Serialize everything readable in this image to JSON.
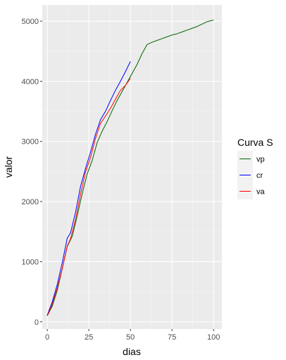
{
  "chart_data": {
    "type": "line",
    "title": "",
    "xlabel": "dias",
    "ylabel": "valor",
    "xlim": [
      -3,
      105
    ],
    "ylim": [
      -120,
      5270
    ],
    "x_ticks": [
      0,
      25,
      50,
      75,
      100
    ],
    "y_ticks": [
      0,
      1000,
      2000,
      3000,
      4000,
      5000
    ],
    "grid": true,
    "legend": {
      "title": "Curva S",
      "placement": "right"
    },
    "series": [
      {
        "name": "vp",
        "color": "#006400",
        "points": [
          [
            0,
            100
          ],
          [
            3,
            260
          ],
          [
            6,
            520
          ],
          [
            9,
            880
          ],
          [
            12,
            1250
          ],
          [
            15,
            1420
          ],
          [
            18,
            1760
          ],
          [
            21,
            2130
          ],
          [
            24,
            2460
          ],
          [
            27,
            2680
          ],
          [
            30,
            2980
          ],
          [
            33,
            3170
          ],
          [
            36,
            3330
          ],
          [
            39,
            3510
          ],
          [
            42,
            3680
          ],
          [
            45,
            3830
          ],
          [
            48,
            3980
          ],
          [
            51,
            4130
          ],
          [
            54,
            4280
          ],
          [
            57,
            4460
          ],
          [
            60,
            4610
          ],
          [
            63,
            4650
          ],
          [
            66,
            4680
          ],
          [
            69,
            4710
          ],
          [
            72,
            4740
          ],
          [
            75,
            4770
          ],
          [
            78,
            4790
          ],
          [
            81,
            4820
          ],
          [
            84,
            4850
          ],
          [
            87,
            4880
          ],
          [
            90,
            4910
          ],
          [
            93,
            4950
          ],
          [
            96,
            4990
          ],
          [
            100,
            5020
          ]
        ]
      },
      {
        "name": "cr",
        "color": "#0000ff",
        "points": [
          [
            0,
            110
          ],
          [
            3,
            330
          ],
          [
            6,
            620
          ],
          [
            9,
            980
          ],
          [
            12,
            1390
          ],
          [
            14,
            1480
          ],
          [
            17,
            1820
          ],
          [
            20,
            2250
          ],
          [
            23,
            2550
          ],
          [
            26,
            2820
          ],
          [
            29,
            3120
          ],
          [
            32,
            3360
          ],
          [
            35,
            3500
          ],
          [
            38,
            3680
          ],
          [
            41,
            3850
          ],
          [
            44,
            4000
          ],
          [
            47,
            4160
          ],
          [
            50,
            4330
          ]
        ]
      },
      {
        "name": "va",
        "color": "#ff0000",
        "points": [
          [
            0,
            100
          ],
          [
            3,
            290
          ],
          [
            6,
            560
          ],
          [
            9,
            880
          ],
          [
            12,
            1260
          ],
          [
            14,
            1380
          ],
          [
            17,
            1700
          ],
          [
            20,
            2120
          ],
          [
            23,
            2490
          ],
          [
            26,
            2730
          ],
          [
            29,
            3050
          ],
          [
            32,
            3300
          ],
          [
            35,
            3420
          ],
          [
            38,
            3550
          ],
          [
            41,
            3700
          ],
          [
            44,
            3850
          ],
          [
            47,
            3930
          ],
          [
            50,
            4050
          ]
        ]
      }
    ]
  }
}
